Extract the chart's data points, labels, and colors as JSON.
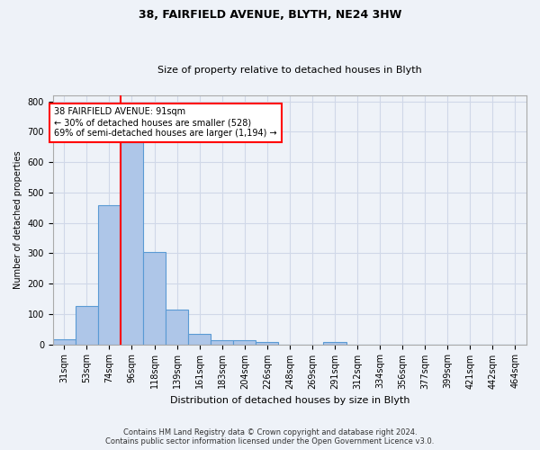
{
  "title": "38, FAIRFIELD AVENUE, BLYTH, NE24 3HW",
  "subtitle": "Size of property relative to detached houses in Blyth",
  "xlabel": "Distribution of detached houses by size in Blyth",
  "ylabel": "Number of detached properties",
  "footer_line1": "Contains HM Land Registry data © Crown copyright and database right 2024.",
  "footer_line2": "Contains public sector information licensed under the Open Government Licence v3.0.",
  "bin_labels": [
    "31sqm",
    "53sqm",
    "74sqm",
    "96sqm",
    "118sqm",
    "139sqm",
    "161sqm",
    "183sqm",
    "204sqm",
    "226sqm",
    "248sqm",
    "269sqm",
    "291sqm",
    "312sqm",
    "334sqm",
    "356sqm",
    "377sqm",
    "399sqm",
    "421sqm",
    "442sqm",
    "464sqm"
  ],
  "bar_values": [
    16,
    125,
    458,
    665,
    303,
    115,
    33,
    14,
    13,
    9,
    0,
    0,
    8,
    0,
    0,
    0,
    0,
    0,
    0,
    0,
    0
  ],
  "bar_color": "#aec6e8",
  "bar_edge_color": "#5a9ad4",
  "grid_color": "#d0d8e8",
  "background_color": "#eef2f8",
  "vline_x_index": 3,
  "vline_color": "red",
  "annotation_text": "38 FAIRFIELD AVENUE: 91sqm\n← 30% of detached houses are smaller (528)\n69% of semi-detached houses are larger (1,194) →",
  "annotation_box_color": "white",
  "annotation_box_edge": "red",
  "ylim": [
    0,
    820
  ],
  "yticks": [
    0,
    100,
    200,
    300,
    400,
    500,
    600,
    700,
    800
  ],
  "title_fontsize": 9,
  "subtitle_fontsize": 8,
  "xlabel_fontsize": 8,
  "ylabel_fontsize": 7,
  "tick_fontsize": 7,
  "annotation_fontsize": 7,
  "footer_fontsize": 6
}
